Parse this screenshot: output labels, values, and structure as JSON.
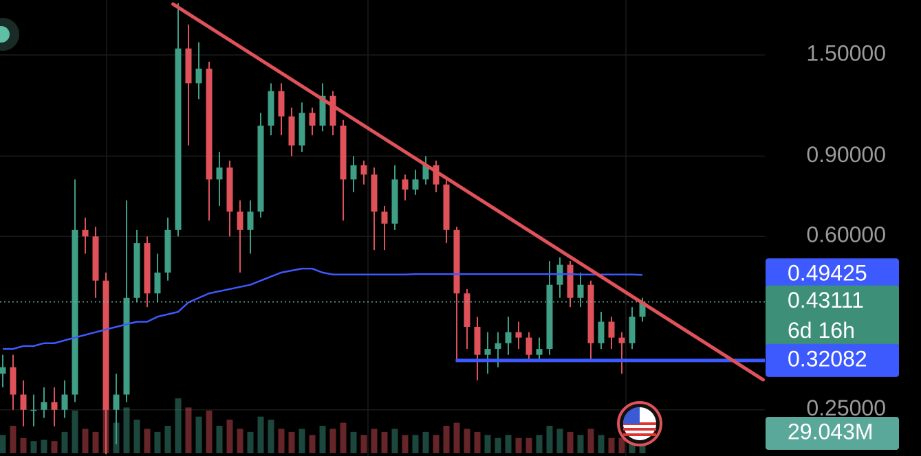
{
  "chart_data": {
    "type": "candlestick",
    "log_scale": true,
    "ylim": [
      0.198,
      1.98
    ],
    "yticks": [
      {
        "value": 1.5,
        "label": "1.50000"
      },
      {
        "value": 0.9,
        "label": "0.90000"
      },
      {
        "value": 0.6,
        "label": "0.60000"
      },
      {
        "value": 0.25,
        "label": "0.25000"
      }
    ],
    "grid": true,
    "up_color": "#3f9e86",
    "down_color": "#e0525a",
    "open": [
      0.3,
      0.31,
      0.27,
      0.25,
      0.25,
      0.26,
      0.25,
      0.27,
      0.62,
      0.6,
      0.48,
      0.25,
      0.27,
      0.44,
      0.58,
      0.45,
      0.5,
      0.62,
      1.55,
      1.3,
      1.4,
      0.8,
      0.85,
      0.68,
      0.62,
      0.68,
      1.05,
      1.25,
      1.1,
      0.95,
      1.12,
      1.05,
      1.22,
      1.05,
      0.8,
      0.86,
      0.82,
      0.68,
      0.64,
      0.8,
      0.76,
      0.8,
      0.86,
      0.78,
      0.62,
      0.45,
      0.38,
      0.33,
      0.34,
      0.35,
      0.37,
      0.36,
      0.33,
      0.34,
      0.47,
      0.52,
      0.44,
      0.47,
      0.35,
      0.39,
      0.36,
      0.35,
      0.4
    ],
    "high": [
      0.33,
      0.33,
      0.29,
      0.27,
      0.28,
      0.28,
      0.29,
      0.8,
      0.66,
      0.63,
      0.5,
      0.3,
      0.72,
      0.62,
      0.6,
      0.55,
      0.66,
      1.95,
      1.75,
      1.6,
      1.45,
      0.92,
      0.88,
      0.72,
      0.72,
      1.12,
      1.3,
      1.3,
      1.15,
      1.18,
      1.15,
      1.3,
      1.25,
      1.08,
      0.9,
      0.88,
      0.85,
      0.7,
      0.86,
      0.82,
      0.84,
      0.9,
      0.88,
      0.8,
      0.63,
      0.46,
      0.4,
      0.37,
      0.37,
      0.4,
      0.39,
      0.37,
      0.36,
      0.53,
      0.54,
      0.53,
      0.5,
      0.48,
      0.41,
      0.4,
      0.37,
      0.42,
      0.44
    ],
    "low": [
      0.28,
      0.25,
      0.23,
      0.23,
      0.24,
      0.23,
      0.24,
      0.26,
      0.55,
      0.44,
      0.2,
      0.21,
      0.26,
      0.43,
      0.42,
      0.43,
      0.48,
      0.6,
      0.95,
      1.2,
      0.65,
      0.7,
      0.6,
      0.5,
      0.55,
      0.66,
      1.0,
      1.0,
      0.9,
      0.92,
      1.0,
      1.02,
      1.0,
      0.65,
      0.75,
      0.78,
      0.56,
      0.56,
      0.62,
      0.72,
      0.74,
      0.78,
      0.75,
      0.58,
      0.32,
      0.34,
      0.29,
      0.3,
      0.31,
      0.33,
      0.34,
      0.32,
      0.32,
      0.33,
      0.44,
      0.42,
      0.42,
      0.32,
      0.34,
      0.34,
      0.3,
      0.34,
      0.39
    ],
    "close": [
      0.31,
      0.27,
      0.25,
      0.25,
      0.26,
      0.25,
      0.27,
      0.62,
      0.6,
      0.48,
      0.25,
      0.27,
      0.44,
      0.58,
      0.45,
      0.5,
      0.62,
      1.55,
      1.3,
      1.4,
      0.8,
      0.85,
      0.68,
      0.62,
      0.68,
      1.05,
      1.25,
      1.1,
      0.95,
      1.12,
      1.05,
      1.22,
      1.05,
      0.8,
      0.86,
      0.82,
      0.68,
      0.64,
      0.8,
      0.76,
      0.8,
      0.86,
      0.78,
      0.62,
      0.45,
      0.38,
      0.33,
      0.34,
      0.35,
      0.37,
      0.36,
      0.33,
      0.34,
      0.47,
      0.52,
      0.44,
      0.47,
      0.35,
      0.39,
      0.36,
      0.35,
      0.4,
      0.43111
    ],
    "countdown": "6d 16h",
    "moving_average": {
      "color": "#3d5afe",
      "values": [
        0.34,
        0.34,
        0.345,
        0.345,
        0.35,
        0.35,
        0.355,
        0.36,
        0.365,
        0.37,
        0.375,
        0.38,
        0.385,
        0.39,
        0.39,
        0.4,
        0.405,
        0.41,
        0.43,
        0.44,
        0.45,
        0.455,
        0.46,
        0.465,
        0.47,
        0.48,
        0.49,
        0.5,
        0.505,
        0.51,
        0.51,
        0.5,
        0.495,
        0.495,
        0.495,
        0.495,
        0.495,
        0.495,
        0.495,
        0.495,
        0.496,
        0.496,
        0.496,
        0.496,
        0.496,
        0.496,
        0.496,
        0.496,
        0.496,
        0.496,
        0.496,
        0.496,
        0.496,
        0.496,
        0.496,
        0.496,
        0.495,
        0.495,
        0.495,
        0.495,
        0.495,
        0.495,
        0.49425
      ]
    },
    "volume": {
      "values": [
        30,
        45,
        25,
        20,
        22,
        20,
        35,
        70,
        40,
        35,
        85,
        50,
        75,
        55,
        40,
        35,
        45,
        90,
        75,
        60,
        70,
        45,
        55,
        40,
        35,
        60,
        55,
        40,
        35,
        40,
        30,
        45,
        40,
        50,
        35,
        30,
        40,
        35,
        40,
        30,
        30,
        35,
        30,
        45,
        50,
        40,
        35,
        30,
        25,
        30,
        25,
        25,
        30,
        45,
        40,
        35,
        30,
        40,
        30,
        25,
        25,
        30,
        29.043
      ],
      "last_label": "29.043M"
    },
    "trendline": {
      "color": "#e0525a",
      "start": [
        16.5,
        1.94
      ],
      "end": [
        73.7,
        0.291
      ]
    },
    "support": {
      "color": "#3d5afe",
      "value": 0.32082,
      "start": 43.9
    }
  }
}
